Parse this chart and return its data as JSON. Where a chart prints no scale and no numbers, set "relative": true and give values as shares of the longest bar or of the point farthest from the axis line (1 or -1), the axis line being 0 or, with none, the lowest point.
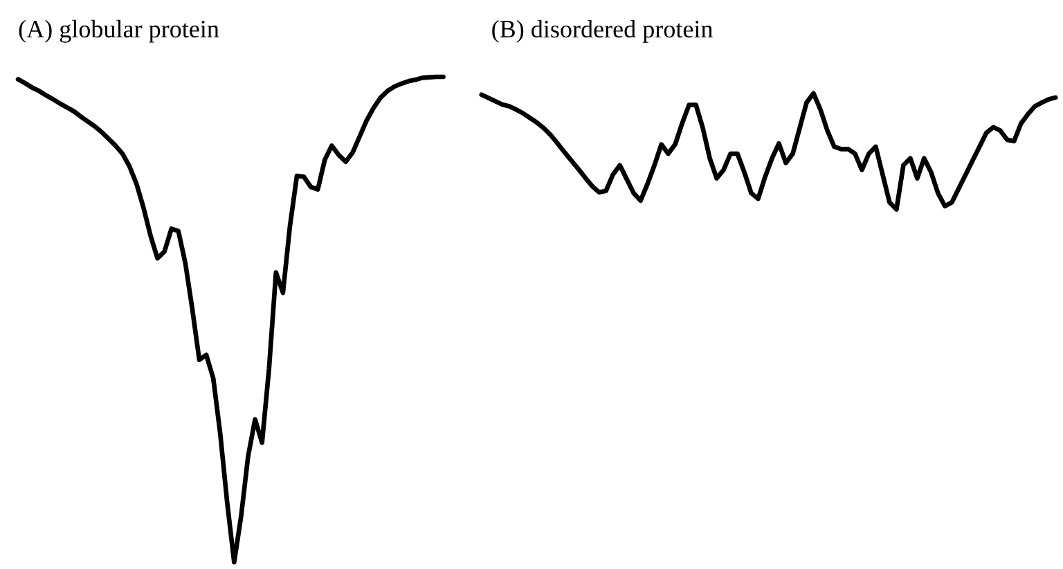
{
  "chart_data": [
    {
      "type": "line",
      "title": "(A) globular protein",
      "relative": true,
      "categories": [
        null,
        null,
        null,
        null,
        null,
        null,
        null,
        null,
        null,
        null,
        null,
        null,
        null,
        null,
        null,
        null,
        null,
        null,
        null,
        null,
        null,
        null,
        null,
        null,
        null,
        null,
        null,
        null,
        null,
        null,
        null,
        null,
        null,
        null,
        null,
        null,
        null,
        null,
        null,
        null,
        null,
        null,
        null,
        null,
        null,
        null,
        null,
        null,
        null,
        null,
        null,
        null,
        null,
        null,
        null,
        null,
        null,
        null,
        null,
        null,
        null,
        null
      ],
      "series": [
        {
          "color": "#000000",
          "values": [
            0.995,
            0.987,
            0.978,
            0.971,
            0.962,
            0.954,
            0.945,
            0.937,
            0.929,
            0.918,
            0.908,
            0.898,
            0.886,
            0.872,
            0.858,
            0.841,
            0.815,
            0.779,
            0.73,
            0.673,
            0.626,
            0.64,
            0.687,
            0.682,
            0.616,
            0.521,
            0.417,
            0.427,
            0.379,
            0.265,
            0.123,
            0,
            0.095,
            0.218,
            0.294,
            0.246,
            0.398,
            0.597,
            0.555,
            0.692,
            0.796,
            0.794,
            0.773,
            0.768,
            0.829,
            0.858,
            0.839,
            0.825,
            0.844,
            0.877,
            0.91,
            0.936,
            0.957,
            0.971,
            0.98,
            0.986,
            0.991,
            0.994,
            0.998,
            0.999,
            1.0,
            1.0
          ]
        }
      ]
    },
    {
      "type": "line",
      "title": "(B) disordered protein",
      "relative": true,
      "categories": [
        null,
        null,
        null,
        null,
        null,
        null,
        null,
        null,
        null,
        null,
        null,
        null,
        null,
        null,
        null,
        null,
        null,
        null,
        null,
        null,
        null,
        null,
        null,
        null,
        null,
        null,
        null,
        null,
        null,
        null,
        null,
        null,
        null,
        null,
        null,
        null,
        null,
        null,
        null,
        null,
        null,
        null,
        null,
        null,
        null,
        null,
        null,
        null,
        null,
        null,
        null,
        null,
        null,
        null,
        null,
        null,
        null,
        null,
        null,
        null,
        null,
        null,
        null,
        null,
        null,
        null,
        null,
        null,
        null,
        null,
        null,
        null,
        null,
        null,
        null,
        null,
        null,
        null,
        null,
        null,
        null,
        null,
        null,
        null
      ],
      "series": [
        {
          "color": "#000000",
          "values": [
            0.988,
            0.96,
            0.932,
            0.904,
            0.888,
            0.86,
            0.828,
            0.788,
            0.748,
            0.7,
            0.64,
            0.568,
            0.492,
            0.42,
            0.348,
            0.272,
            0.2,
            0.148,
            0.16,
            0.3,
            0.38,
            0.26,
            0.14,
            0.076,
            0.22,
            0.38,
            0.56,
            0.48,
            0.56,
            0.74,
            0.9,
            0.9,
            0.7,
            0.44,
            0.268,
            0.34,
            0.48,
            0.48,
            0.32,
            0.14,
            0.092,
            0.28,
            0.44,
            0.568,
            0.4,
            0.48,
            0.7,
            0.92,
            1.0,
            0.86,
            0.68,
            0.54,
            0.52,
            0.52,
            0.48,
            0.34,
            0.48,
            0.54,
            0.3,
            0.06,
            0,
            0.38,
            0.44,
            0.268,
            0.44,
            0.32,
            0.14,
            0.028,
            0.06,
            0.18,
            0.3,
            0.42,
            0.54,
            0.66,
            0.708,
            0.68,
            0.6,
            0.588,
            0.74,
            0.82,
            0.888,
            0.92,
            0.948,
            0.964
          ]
        }
      ]
    }
  ]
}
